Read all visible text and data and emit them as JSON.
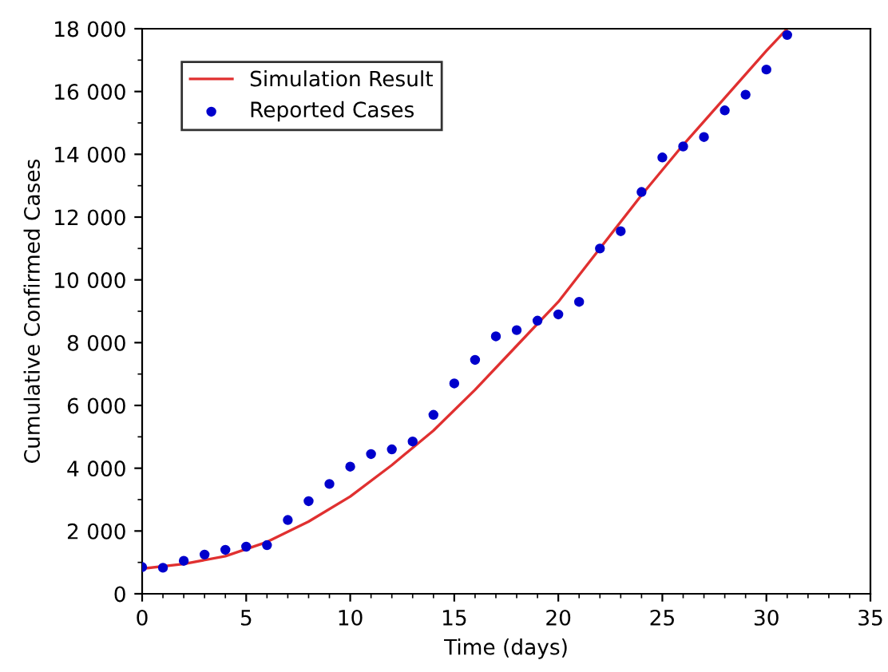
{
  "chart_data": {
    "type": "line",
    "xlabel": "Time (days)",
    "ylabel": "Cumulative Confirmed Cases",
    "xlim": [
      0,
      35
    ],
    "xticks": [
      0,
      5,
      10,
      15,
      20,
      25,
      30,
      35
    ],
    "ylim": [
      0,
      18000
    ],
    "yticks": [
      {
        "value": 0,
        "label": "0"
      },
      {
        "value": 2000,
        "label": "2 000"
      },
      {
        "value": 4000,
        "label": "4 000"
      },
      {
        "value": 6000,
        "label": "6 000"
      },
      {
        "value": 8000,
        "label": "8 000"
      },
      {
        "value": 10000,
        "label": "10 000"
      },
      {
        "value": 12000,
        "label": "12 000"
      },
      {
        "value": 14000,
        "label": "14 000"
      },
      {
        "value": 16000,
        "label": "16 000"
      },
      {
        "value": 18000,
        "label": "18 000"
      }
    ],
    "legend": "top left",
    "grid": false,
    "series": [
      {
        "name": "Simulation Result",
        "color": "#e03030",
        "line_style": "solid",
        "marker": "none",
        "x": [
          0,
          2,
          4,
          6,
          8,
          10,
          12,
          14,
          16,
          18,
          20,
          22,
          24,
          26,
          28,
          30,
          31
        ],
        "values": [
          800,
          950,
          1200,
          1650,
          2300,
          3100,
          4100,
          5200,
          6500,
          7900,
          9300,
          11000,
          12700,
          14300,
          15800,
          17300,
          18000
        ]
      },
      {
        "name": "Reported Cases",
        "type": "scatter",
        "color": "#0000cc",
        "marker": "circle",
        "x": [
          0,
          1,
          2,
          3,
          4,
          5,
          6,
          7,
          8,
          9,
          10,
          11,
          12,
          13,
          14,
          15,
          16,
          17,
          18,
          19,
          20,
          21,
          22,
          23,
          24,
          25,
          26,
          27,
          28,
          29,
          30,
          31
        ],
        "values": [
          850,
          830,
          1050,
          1250,
          1400,
          1500,
          1550,
          2350,
          2950,
          3500,
          4050,
          4450,
          4600,
          4850,
          5700,
          6700,
          7450,
          8200,
          8400,
          8700,
          8900,
          9300,
          11000,
          11550,
          12800,
          13900,
          14250,
          14550,
          15400,
          15900,
          16700,
          17800
        ]
      }
    ]
  }
}
